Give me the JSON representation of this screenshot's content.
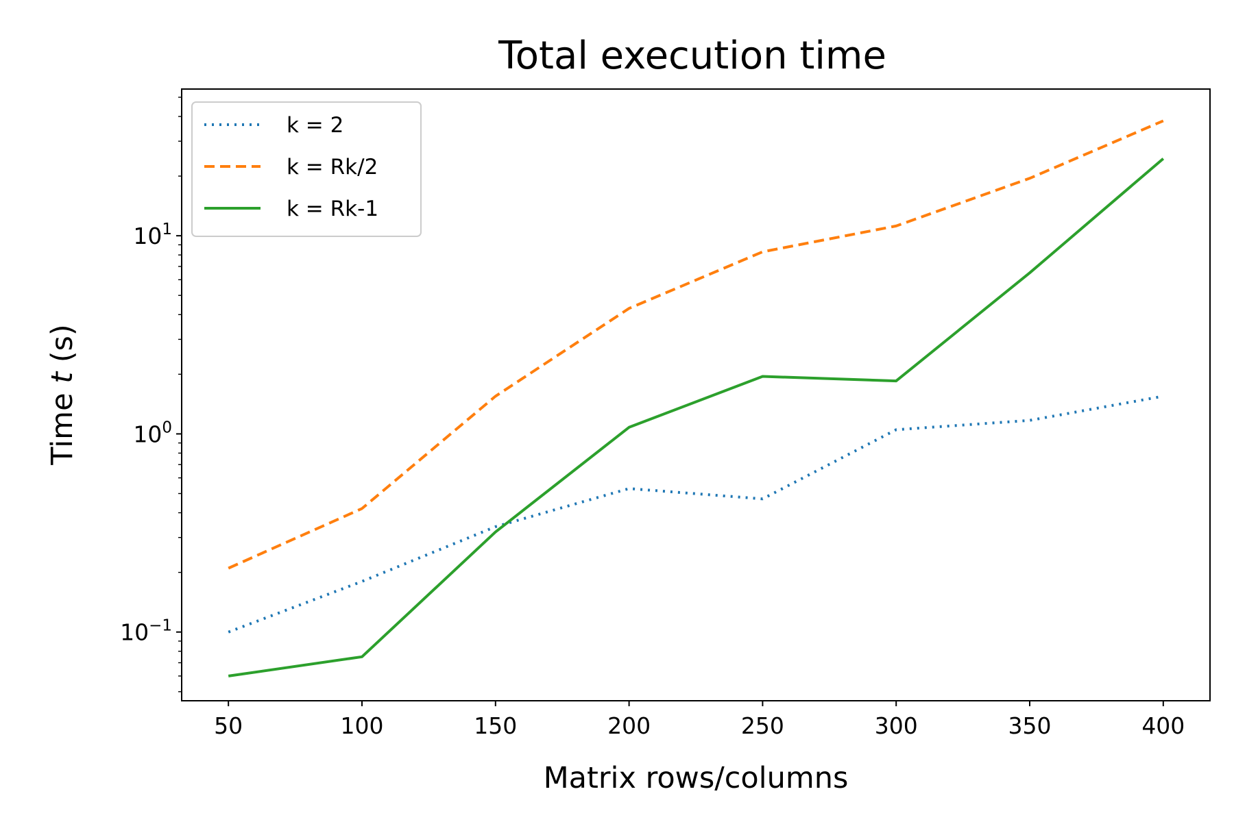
{
  "chart_data": {
    "type": "line",
    "title": "Total execution time",
    "xlabel": "Matrix rows/columns",
    "ylabel_main": "Time ",
    "ylabel_var": "t",
    "ylabel_unit": " (s)",
    "yscale": "log",
    "xlim": [
      32.5,
      417.5
    ],
    "ylim": [
      0.045,
      55
    ],
    "x": [
      50,
      100,
      150,
      200,
      250,
      300,
      350,
      400
    ],
    "x_tick_labels": [
      "50",
      "100",
      "150",
      "200",
      "250",
      "300",
      "350",
      "400"
    ],
    "y_ticks": [
      {
        "value": 0.1,
        "base": "10",
        "exp": "−1"
      },
      {
        "value": 1,
        "base": "10",
        "exp": "0"
      },
      {
        "value": 10,
        "base": "10",
        "exp": "1"
      }
    ],
    "grid": false,
    "legend_position": "top-left",
    "series": [
      {
        "name": "k = 2",
        "color": "#1f77b4",
        "style": "dotted",
        "values": [
          0.1,
          0.18,
          0.34,
          0.53,
          0.47,
          1.05,
          1.17,
          1.55
        ]
      },
      {
        "name": "k = Rk/2",
        "color": "#ff7f0e",
        "style": "dashed",
        "values": [
          0.21,
          0.42,
          1.55,
          4.3,
          8.3,
          11.2,
          19.5,
          38
        ]
      },
      {
        "name": "k = Rk-1",
        "color": "#2ca02c",
        "style": "solid",
        "values": [
          0.06,
          0.075,
          0.32,
          1.08,
          1.95,
          1.85,
          6.5,
          24.5
        ]
      }
    ]
  }
}
